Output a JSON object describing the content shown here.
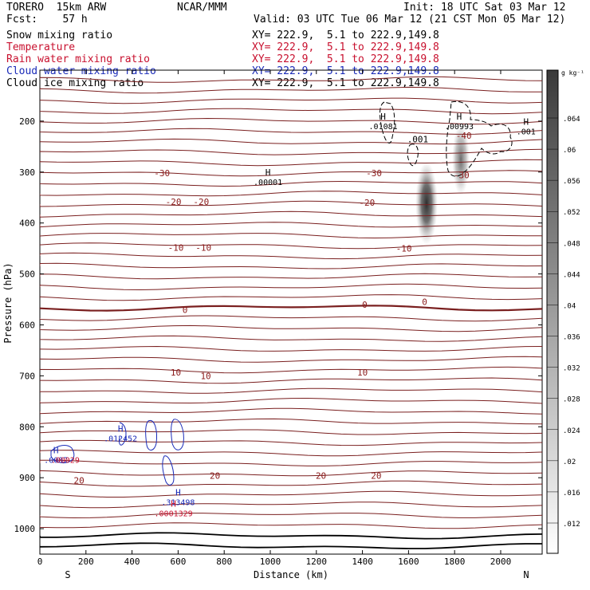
{
  "header": {
    "model": "TORERO  15km ARW",
    "center": "NCAR/MMM",
    "init": "Init: 18 UTC Sat 03 Mar 12",
    "fcst": "Fcst:    57 h",
    "valid": "Valid: 03 UTC Tue 06 Mar 12 (21 CST Mon 05 Mar 12)"
  },
  "fields": [
    {
      "name": "Snow mixing ratio",
      "xy": "XY= 222.9,  5.1 to 222.9,149.8",
      "color": "#000000"
    },
    {
      "name": "Temperature",
      "xy": "XY= 222.9,  5.1 to 222.9,149.8",
      "color": "#c8102e"
    },
    {
      "name": "Rain water mixing ratio",
      "xy": "XY= 222.9,  5.1 to 222.9,149.8",
      "color": "#c8102e"
    },
    {
      "name": "Cloud water mixing ratio",
      "xy": "XY= 222.9,  5.1 to 222.9,149.8",
      "color": "#1a2bb8"
    },
    {
      "name": "Cloud ice mixing ratio",
      "xy": "XY= 222.9,  5.1 to 222.9,149.8",
      "color": "#000000"
    }
  ],
  "chart_data": {
    "type": "contour",
    "xlabel": "Distance (km)",
    "ylabel": "Pressure (hPa)",
    "xlim": [
      0,
      2180
    ],
    "ylim": [
      1050,
      100
    ],
    "x_ticks": [
      0,
      200,
      400,
      600,
      800,
      1000,
      1200,
      1400,
      1600,
      1800,
      2000
    ],
    "y_ticks": [
      200,
      300,
      400,
      500,
      600,
      700,
      800,
      900,
      1000
    ],
    "x_end_labels": {
      "left": "S",
      "right": "N"
    },
    "colorbar": {
      "unit": "g kg⁻¹",
      "ticks": [
        ".012",
        ".016",
        ".02",
        ".024",
        ".028",
        ".032",
        ".036",
        ".04",
        ".044",
        ".048",
        ".052",
        ".056",
        ".06",
        ".064"
      ],
      "colors": {
        "low": "#ffffff",
        "high": "#3a3a3a"
      }
    },
    "temperature_labels": [
      {
        "value": "-30",
        "x": 530,
        "p": 302
      },
      {
        "value": "-30",
        "x": 1450,
        "p": 302
      },
      {
        "value": "-30",
        "x": 1830,
        "p": 306
      },
      {
        "value": "-40",
        "x": 1840,
        "p": 228
      },
      {
        "value": "-20",
        "x": 580,
        "p": 358
      },
      {
        "value": "-20",
        "x": 700,
        "p": 358
      },
      {
        "value": "-20",
        "x": 1420,
        "p": 360
      },
      {
        "value": "-10",
        "x": 590,
        "p": 448
      },
      {
        "value": "-10",
        "x": 710,
        "p": 448
      },
      {
        "value": "-10",
        "x": 1580,
        "p": 450
      },
      {
        "value": "0",
        "x": 630,
        "p": 570
      },
      {
        "value": "0",
        "x": 1410,
        "p": 560
      },
      {
        "value": "0",
        "x": 1670,
        "p": 555
      },
      {
        "value": "10",
        "x": 590,
        "p": 693
      },
      {
        "value": "10",
        "x": 720,
        "p": 700
      },
      {
        "value": "10",
        "x": 1400,
        "p": 693
      },
      {
        "value": "20",
        "x": 170,
        "p": 905
      },
      {
        "value": "20",
        "x": 760,
        "p": 896
      },
      {
        "value": "20",
        "x": 1220,
        "p": 896
      },
      {
        "value": "20",
        "x": 1460,
        "p": 896
      }
    ],
    "extrema": [
      {
        "mark": "H",
        "value": ".00001",
        "x": 990,
        "p": 310,
        "color": "#000000"
      },
      {
        "mark": "H",
        "value": ".01081",
        "x": 1490,
        "p": 200,
        "color": "#000000"
      },
      {
        "mark": ".001",
        "value": "",
        "x": 1640,
        "p": 245,
        "color": "#000000"
      },
      {
        "mark": "H",
        "value": ".00993",
        "x": 1820,
        "p": 200,
        "color": "#000000"
      },
      {
        "mark": "H",
        "value": ".001",
        "x": 2110,
        "p": 210,
        "color": "#000000"
      },
      {
        "mark": "H",
        "value": ".012452",
        "x": 350,
        "p": 813,
        "color": "#1a2bb8"
      },
      {
        "mark": "H",
        "value": ".0087",
        "x": 70,
        "p": 855,
        "color": "#1a2bb8"
      },
      {
        "mark": "",
        "value": ".00029",
        "x": 110,
        "p": 855,
        "color": "#c8102e"
      },
      {
        "mark": "H",
        "value": ".313498",
        "x": 600,
        "p": 938,
        "color": "#1a2bb8"
      },
      {
        "mark": "H",
        "value": ".0001329",
        "x": 580,
        "p": 960,
        "color": "#c8102e"
      }
    ]
  }
}
